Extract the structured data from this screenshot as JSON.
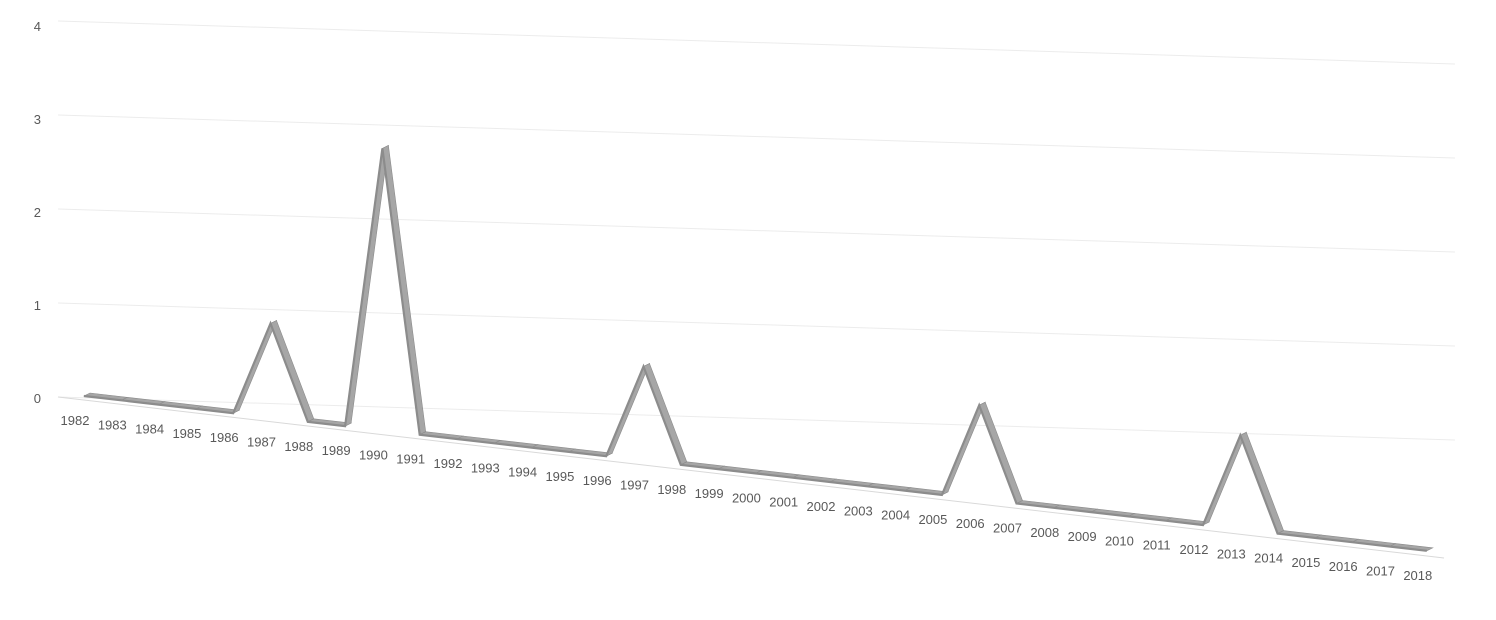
{
  "chart_data": {
    "type": "line",
    "title": "",
    "xlabel": "",
    "ylabel": "",
    "x": [
      "1982",
      "1983",
      "1984",
      "1985",
      "1986",
      "1987",
      "1988",
      "1989",
      "1990",
      "1991",
      "1992",
      "1993",
      "1994",
      "1995",
      "1996",
      "1997",
      "1998",
      "1999",
      "2000",
      "2001",
      "2002",
      "2003",
      "2004",
      "2005",
      "2006",
      "2007",
      "2008",
      "2009",
      "2010",
      "2011",
      "2012",
      "2013",
      "2014",
      "2015",
      "2016",
      "2017",
      "2018"
    ],
    "series": [
      {
        "values": [
          0,
          0,
          0,
          0,
          0,
          1,
          0,
          0,
          3,
          0,
          0,
          0,
          0,
          0,
          0,
          1,
          0,
          0,
          0,
          0,
          0,
          0,
          0,
          0,
          1,
          0,
          0,
          0,
          0,
          0,
          0,
          1,
          0,
          0,
          0,
          0,
          0
        ]
      }
    ],
    "ylim": [
      0,
      4
    ],
    "yticks": [
      "0",
      "1",
      "2",
      "3",
      "4"
    ],
    "grid": true,
    "legend": "none",
    "colors": {
      "line": "#a6a6a6",
      "line_side": "#8c8c8c",
      "grid": "#ececec",
      "axis": "#d9d9d9",
      "text": "#595959"
    }
  }
}
